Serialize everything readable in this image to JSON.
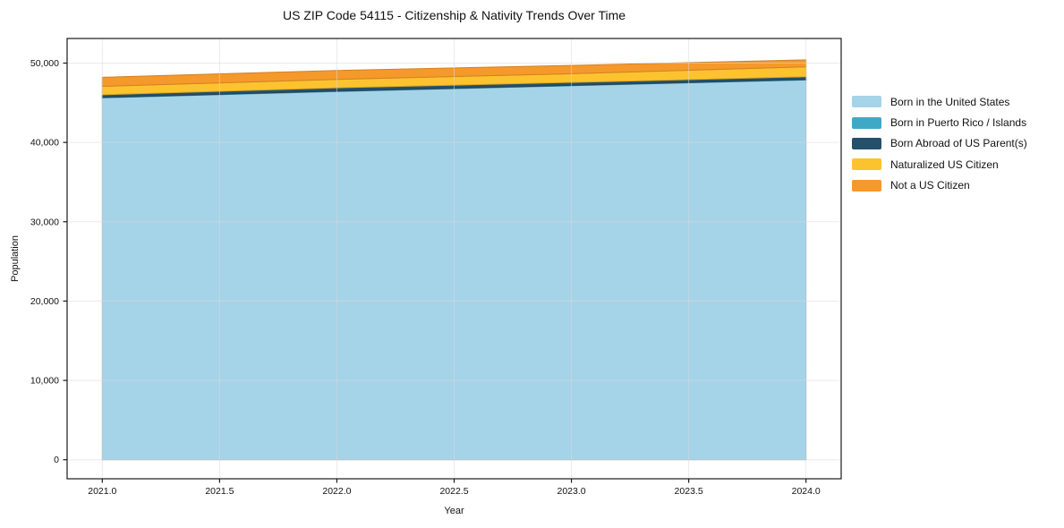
{
  "chart_data": {
    "type": "area",
    "stacked": true,
    "title": "US ZIP Code 54115 - Citizenship & Nativity Trends Over Time",
    "xlabel": "Year",
    "ylabel": "Population",
    "x": [
      2021,
      2022,
      2023,
      2024
    ],
    "series": [
      {
        "name": "Born in the United States",
        "color": "#a5d3e8",
        "values": [
          45620,
          46420,
          47140,
          47870
        ]
      },
      {
        "name": "Born in Puerto Rico / Islands",
        "color": "#3fa9c5",
        "values": [
          40,
          45,
          45,
          50
        ]
      },
      {
        "name": "Born Abroad of US Parent(s)",
        "color": "#24506b",
        "values": [
          350,
          415,
          375,
          350
        ]
      },
      {
        "name": "Naturalized US Citizen",
        "color": "#fdc32f",
        "values": [
          1060,
          1060,
          1090,
          1250
        ]
      },
      {
        "name": "Not a US Citizen",
        "color": "#f5992b",
        "values": [
          1130,
          1130,
          1060,
          880
        ]
      }
    ],
    "totals": [
      48200,
      49070,
      49710,
      50400
    ],
    "xticks": [
      2021.0,
      2021.5,
      2022.0,
      2022.5,
      2023.0,
      2023.5,
      2024.0
    ],
    "xtick_labels": [
      "2021.0",
      "2021.5",
      "2022.0",
      "2022.5",
      "2023.0",
      "2023.5",
      "2024.0"
    ],
    "yticks": [
      0,
      10000,
      20000,
      30000,
      40000,
      50000
    ],
    "ytick_labels": [
      "0",
      "10,000",
      "20,000",
      "30,000",
      "40,000",
      "50,000"
    ],
    "xlim": [
      2020.85,
      2024.15
    ],
    "ylim": [
      -2400,
      53100
    ],
    "grid": true,
    "legend_position": "right-upper",
    "colors": {
      "grid": "#dadada",
      "spine": "#1a1a1a",
      "text": "#111111",
      "background": "#ffffff"
    }
  }
}
